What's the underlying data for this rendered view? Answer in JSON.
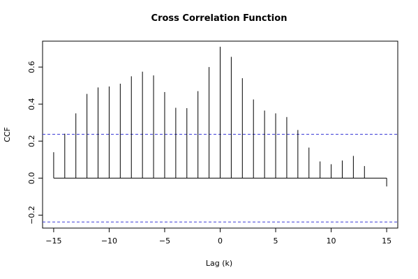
{
  "chart_data": {
    "type": "bar",
    "title": "Cross Correlation Function",
    "xlabel": "Lag (k)",
    "ylabel": "CCF",
    "xlim": [
      -16,
      16
    ],
    "ylim": [
      -0.27,
      0.74
    ],
    "xticks": [
      -15,
      -10,
      -5,
      0,
      5,
      10,
      15
    ],
    "xtick_labels": [
      "−15",
      "−10",
      "−5",
      "0",
      "5",
      "10",
      "15"
    ],
    "yticks": [
      -0.2,
      0.0,
      0.2,
      0.4,
      0.6
    ],
    "ytick_labels": [
      "−0.2",
      "0.0",
      "0.2",
      "0.4",
      "0.6"
    ],
    "confidence_bounds": [
      0.237,
      -0.237
    ],
    "lags": [
      -15,
      -14,
      -13,
      -12,
      -11,
      -10,
      -9,
      -8,
      -7,
      -6,
      -5,
      -4,
      -3,
      -2,
      -1,
      0,
      1,
      2,
      3,
      4,
      5,
      6,
      7,
      8,
      9,
      10,
      11,
      12,
      13,
      14,
      15
    ],
    "values": [
      0.14,
      0.24,
      0.35,
      0.455,
      0.49,
      0.495,
      0.51,
      0.55,
      0.575,
      0.555,
      0.465,
      0.38,
      0.378,
      0.47,
      0.6,
      0.71,
      0.655,
      0.54,
      0.425,
      0.365,
      0.35,
      0.33,
      0.26,
      0.165,
      0.09,
      0.075,
      0.095,
      0.12,
      0.065,
      0.0,
      -0.045
    ],
    "colors": {
      "bars": "#000000",
      "confidence": "#3b3bd6"
    }
  }
}
